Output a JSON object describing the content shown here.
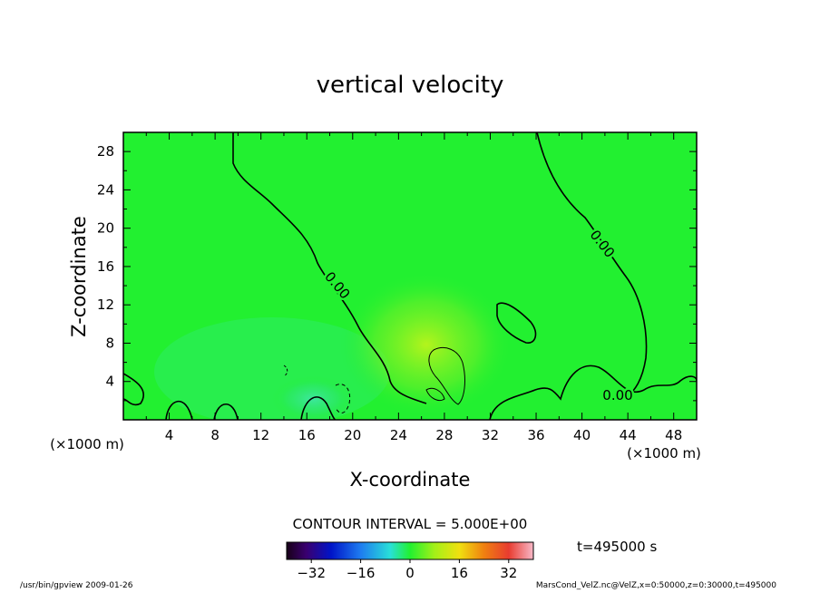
{
  "chart_data": {
    "type": "heatmap",
    "title": "vertical velocity",
    "xlabel": "X-coordinate",
    "ylabel": "Z-coordinate",
    "x_unit": "(×1000 m)",
    "y_unit": "(×1000 m)",
    "xlim": [
      0,
      50
    ],
    "ylim": [
      0,
      30
    ],
    "x_ticks": [
      4,
      8,
      12,
      16,
      20,
      24,
      28,
      32,
      36,
      40,
      44,
      48
    ],
    "y_ticks": [
      4,
      8,
      12,
      16,
      20,
      24,
      28
    ],
    "contour_interval_text": "CONTOUR INTERVAL = 5.000E+00",
    "contour_labels": [
      "0.00",
      "0.00",
      "0.00"
    ],
    "colorbar": {
      "min": -40,
      "max": 40,
      "ticks": [
        -32,
        -16,
        0,
        16,
        32
      ]
    },
    "background_value": 0,
    "features": [
      {
        "name": "updraft core",
        "x": 29,
        "z": 5.5,
        "value": 5
      },
      {
        "name": "weak downdraft",
        "x": 17,
        "z": 3,
        "value": -5
      }
    ]
  },
  "time_label": "t=495000 s",
  "footer_left": "/usr/bin/gpview   2009-01-26",
  "footer_right": "MarsCond_VelZ.nc@VelZ,x=0:50000,z=0:30000,t=495000",
  "colors": {
    "field_zero": "#22f030",
    "updraft": "#a8f418",
    "downdraft": "#40e8a0"
  }
}
